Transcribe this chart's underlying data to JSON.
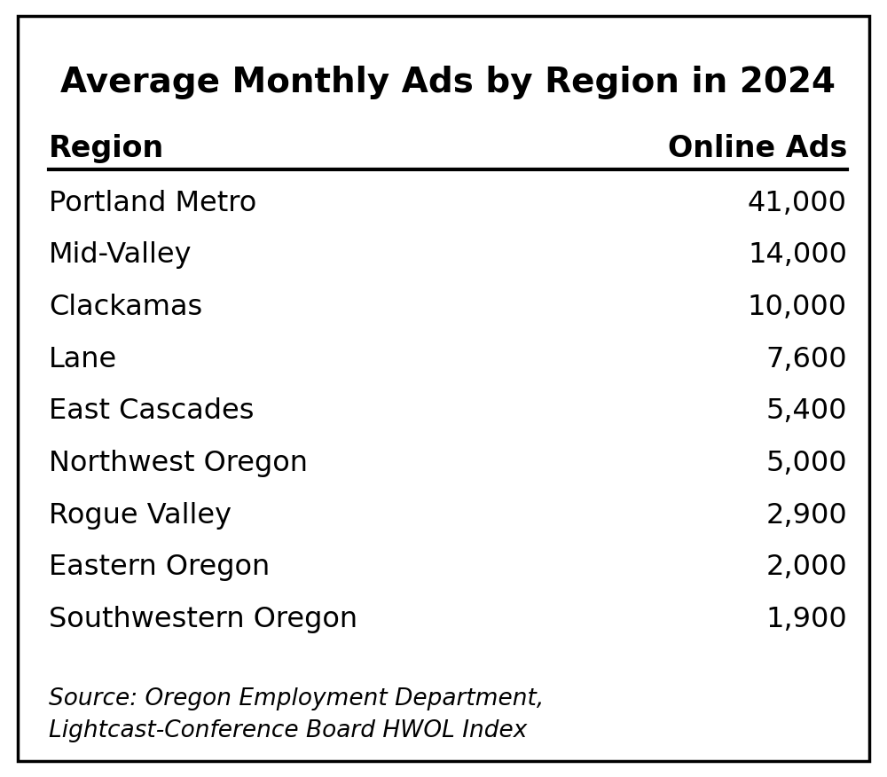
{
  "title": "Average Monthly Ads by Region in 2024",
  "col_headers": [
    "Region",
    "Online Ads"
  ],
  "rows": [
    [
      "Portland Metro",
      "41,000"
    ],
    [
      "Mid-Valley",
      "14,000"
    ],
    [
      "Clackamas",
      "10,000"
    ],
    [
      "Lane",
      "7,600"
    ],
    [
      "East Cascades",
      "5,400"
    ],
    [
      "Northwest Oregon",
      "5,000"
    ],
    [
      "Rogue Valley",
      "2,900"
    ],
    [
      "Eastern Oregon",
      "2,000"
    ],
    [
      "Southwestern Oregon",
      "1,900"
    ]
  ],
  "source_text": "Source: Oregon Employment Department,\nLightcast-Conference Board HWOL Index",
  "background_color": "#ffffff",
  "border_color": "#000000",
  "text_color": "#000000",
  "title_fontsize": 28,
  "header_fontsize": 24,
  "row_fontsize": 23,
  "source_fontsize": 19,
  "fig_width": 10.0,
  "fig_height": 8.76
}
